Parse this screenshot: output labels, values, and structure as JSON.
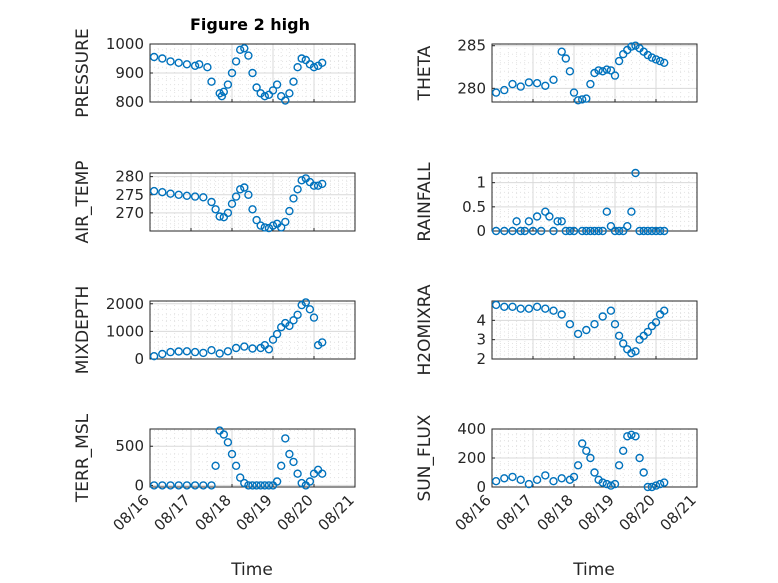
{
  "figure": {
    "title": "Figure 2 high",
    "xticks": [
      "08/16",
      "08/17",
      "08/18",
      "08/19",
      "08/20",
      "08/21"
    ],
    "xlabel": "Time"
  },
  "colors": {
    "marker": "#0072BD",
    "axis": "#262626",
    "grid": "#d9d9d9"
  },
  "chart_data": [
    {
      "type": "scatter",
      "title": "Figure 2 high",
      "ylabel": "PRESSURE",
      "xlim": [
        0,
        5
      ],
      "ylim": [
        800,
        1000
      ],
      "yticks": [
        "800",
        "900",
        "1000"
      ],
      "grid": true,
      "x": [
        0.1,
        0.3,
        0.5,
        0.7,
        0.9,
        1.1,
        1.2,
        1.4,
        1.5,
        1.7,
        1.75,
        1.8,
        1.9,
        2.0,
        2.1,
        2.2,
        2.3,
        2.4,
        2.5,
        2.6,
        2.7,
        2.8,
        2.9,
        3.0,
        3.1,
        3.2,
        3.3,
        3.4,
        3.5,
        3.6,
        3.7,
        3.8,
        3.9,
        4.0,
        4.1,
        4.2
      ],
      "y": [
        955,
        950,
        940,
        935,
        930,
        925,
        930,
        920,
        870,
        830,
        820,
        835,
        860,
        900,
        940,
        980,
        985,
        960,
        900,
        850,
        830,
        820,
        825,
        840,
        860,
        820,
        805,
        830,
        870,
        920,
        950,
        945,
        930,
        920,
        925,
        935
      ]
    },
    {
      "type": "scatter",
      "ylabel": "THETA",
      "xlim": [
        0,
        5
      ],
      "ylim": [
        278.4,
        285.2
      ],
      "yticks": [
        "280",
        "285"
      ],
      "grid": true,
      "x": [
        0.1,
        0.3,
        0.5,
        0.7,
        0.9,
        1.1,
        1.3,
        1.5,
        1.7,
        1.8,
        1.9,
        2.0,
        2.1,
        2.2,
        2.3,
        2.4,
        2.5,
        2.6,
        2.7,
        2.8,
        2.9,
        3.0,
        3.1,
        3.2,
        3.3,
        3.4,
        3.5,
        3.6,
        3.7,
        3.8,
        3.9,
        4.0,
        4.1,
        4.2
      ],
      "y": [
        279.5,
        279.8,
        280.5,
        280.2,
        280.7,
        280.6,
        280.3,
        281.0,
        284.3,
        283.5,
        282.0,
        279.5,
        278.6,
        278.7,
        278.8,
        280.5,
        281.8,
        282.1,
        282.0,
        282.2,
        282.1,
        281.5,
        283.2,
        284.0,
        284.5,
        284.9,
        285.0,
        284.7,
        284.3,
        283.9,
        283.6,
        283.4,
        283.2,
        283.0
      ]
    },
    {
      "type": "scatter",
      "ylabel": "AIR_TEMP",
      "xlim": [
        0,
        5
      ],
      "ylim": [
        265,
        281
      ],
      "yticks": [
        "270",
        "275",
        "280"
      ],
      "grid": true,
      "x": [
        0.1,
        0.3,
        0.5,
        0.7,
        0.9,
        1.1,
        1.3,
        1.5,
        1.6,
        1.7,
        1.8,
        1.9,
        2.0,
        2.1,
        2.2,
        2.3,
        2.4,
        2.5,
        2.6,
        2.7,
        2.8,
        2.9,
        3.0,
        3.1,
        3.2,
        3.3,
        3.4,
        3.5,
        3.6,
        3.7,
        3.8,
        3.9,
        4.0,
        4.1,
        4.2
      ],
      "y": [
        276.0,
        275.7,
        275.3,
        275.0,
        274.7,
        274.5,
        274.3,
        273.0,
        271.0,
        269.0,
        268.8,
        270.0,
        272.5,
        274.5,
        276.5,
        277.0,
        275.0,
        271.0,
        268.0,
        266.5,
        266.0,
        265.8,
        266.5,
        267.0,
        266.0,
        267.5,
        270.5,
        274.0,
        276.5,
        279.0,
        279.5,
        278.5,
        277.5,
        277.5,
        278.0
      ]
    },
    {
      "type": "scatter",
      "ylabel": "RAINFALL",
      "xlim": [
        0,
        5
      ],
      "ylim": [
        0,
        1.2
      ],
      "yticks": [
        "0",
        "0.5",
        "1"
      ],
      "grid": true,
      "x": [
        0.1,
        0.3,
        0.5,
        0.6,
        0.7,
        0.8,
        0.9,
        1.0,
        1.1,
        1.2,
        1.3,
        1.4,
        1.5,
        1.6,
        1.7,
        1.8,
        1.9,
        2.0,
        2.2,
        2.3,
        2.4,
        2.5,
        2.6,
        2.7,
        2.8,
        2.9,
        3.0,
        3.1,
        3.2,
        3.3,
        3.4,
        3.5,
        3.6,
        3.7,
        3.8,
        3.9,
        4.0,
        4.1,
        4.2
      ],
      "y": [
        0,
        0,
        0,
        0.2,
        0,
        0,
        0.2,
        0,
        0.3,
        0,
        0.4,
        0.3,
        0,
        0.2,
        0.2,
        0,
        0,
        0,
        0,
        0,
        0,
        0,
        0,
        0,
        0.4,
        0.1,
        0,
        0,
        0,
        0.1,
        0.4,
        1.2,
        0,
        0,
        0,
        0,
        0,
        0,
        0
      ]
    },
    {
      "type": "scatter",
      "ylabel": "MIXDEPTH",
      "xlim": [
        0,
        5
      ],
      "ylim": [
        0,
        2100
      ],
      "yticks": [
        "0",
        "1000",
        "2000"
      ],
      "grid": true,
      "x": [
        0.1,
        0.3,
        0.5,
        0.7,
        0.9,
        1.1,
        1.3,
        1.5,
        1.7,
        1.9,
        2.1,
        2.3,
        2.5,
        2.7,
        2.8,
        2.9,
        3.0,
        3.1,
        3.2,
        3.3,
        3.4,
        3.5,
        3.6,
        3.7,
        3.8,
        3.9,
        4.0,
        4.1,
        4.2
      ],
      "y": [
        100,
        180,
        250,
        270,
        280,
        250,
        220,
        320,
        200,
        280,
        400,
        450,
        380,
        400,
        500,
        350,
        700,
        900,
        1150,
        1300,
        1200,
        1400,
        1600,
        1950,
        2050,
        1800,
        1500,
        500,
        600
      ]
    },
    {
      "type": "scatter",
      "ylabel": "H2OMIXRA",
      "xlim": [
        0,
        5
      ],
      "ylim": [
        2,
        5
      ],
      "yticks": [
        "2",
        "3",
        "4"
      ],
      "grid": true,
      "x": [
        0.1,
        0.3,
        0.5,
        0.7,
        0.9,
        1.1,
        1.3,
        1.5,
        1.7,
        1.9,
        2.1,
        2.3,
        2.5,
        2.7,
        2.9,
        3.0,
        3.1,
        3.2,
        3.3,
        3.4,
        3.5,
        3.6,
        3.7,
        3.8,
        3.9,
        4.0,
        4.1,
        4.2
      ],
      "y": [
        4.8,
        4.7,
        4.7,
        4.6,
        4.6,
        4.7,
        4.6,
        4.5,
        4.3,
        3.8,
        3.3,
        3.5,
        3.8,
        4.2,
        4.5,
        3.8,
        3.2,
        2.8,
        2.5,
        2.3,
        2.4,
        3.0,
        3.2,
        3.4,
        3.7,
        3.9,
        4.3,
        4.5
      ]
    },
    {
      "type": "scatter",
      "ylabel": "TERR_MSL",
      "xlim": [
        0,
        5
      ],
      "ylim": [
        -20,
        720
      ],
      "yticks": [
        "0",
        "500"
      ],
      "grid": true,
      "x": [
        0.1,
        0.3,
        0.5,
        0.7,
        0.9,
        1.1,
        1.3,
        1.5,
        1.6,
        1.7,
        1.8,
        1.9,
        2.0,
        2.1,
        2.2,
        2.3,
        2.4,
        2.5,
        2.6,
        2.7,
        2.8,
        2.9,
        3.0,
        3.1,
        3.2,
        3.3,
        3.4,
        3.5,
        3.6,
        3.7,
        3.8,
        3.9,
        4.0,
        4.1,
        4.2
      ],
      "y": [
        0,
        0,
        0,
        0,
        0,
        0,
        0,
        0,
        250,
        700,
        650,
        550,
        400,
        250,
        100,
        30,
        0,
        0,
        0,
        0,
        0,
        0,
        0,
        50,
        250,
        600,
        400,
        300,
        150,
        30,
        0,
        50,
        150,
        200,
        150
      ]
    },
    {
      "type": "scatter",
      "ylabel": "SUN_FLUX",
      "xlim": [
        0,
        5
      ],
      "ylim": [
        0,
        400
      ],
      "yticks": [
        "0",
        "200",
        "400"
      ],
      "grid": true,
      "x": [
        0.1,
        0.3,
        0.5,
        0.7,
        0.9,
        1.1,
        1.3,
        1.5,
        1.7,
        1.9,
        2.0,
        2.1,
        2.2,
        2.3,
        2.4,
        2.5,
        2.6,
        2.7,
        2.8,
        2.9,
        3.0,
        3.1,
        3.2,
        3.3,
        3.4,
        3.5,
        3.6,
        3.7,
        3.8,
        3.9,
        4.0,
        4.1,
        4.2
      ],
      "y": [
        40,
        60,
        70,
        50,
        20,
        50,
        80,
        40,
        60,
        50,
        70,
        150,
        300,
        250,
        200,
        100,
        50,
        30,
        20,
        10,
        20,
        150,
        250,
        350,
        360,
        350,
        200,
        100,
        0,
        0,
        10,
        20,
        30
      ]
    }
  ]
}
